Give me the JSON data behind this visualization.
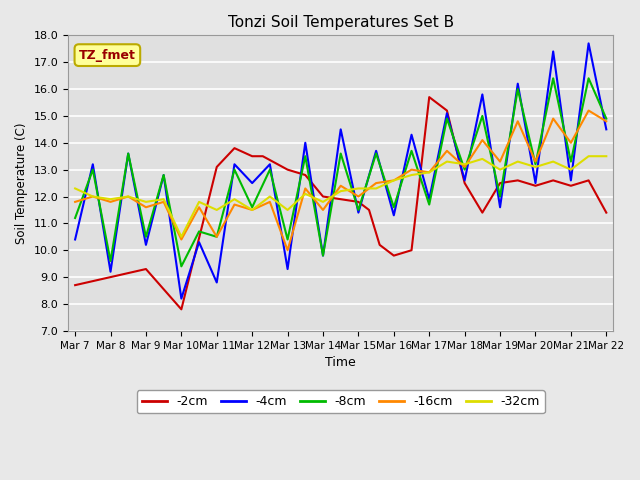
{
  "title": "Tonzi Soil Temperatures Set B",
  "xlabel": "Time",
  "ylabel": "Soil Temperature (C)",
  "ylim": [
    7.0,
    18.0
  ],
  "yticks": [
    7.0,
    8.0,
    9.0,
    10.0,
    11.0,
    12.0,
    13.0,
    14.0,
    15.0,
    16.0,
    17.0,
    18.0
  ],
  "xtick_labels": [
    "Mar 7",
    "Mar 8",
    "Mar 9",
    "Mar 10",
    "Mar 11",
    "Mar 12",
    "Mar 13",
    "Mar 14",
    "Mar 15",
    "Mar 16",
    "Mar 17",
    "Mar 18",
    "Mar 19",
    "Mar 20",
    "Mar 21",
    "Mar 22"
  ],
  "legend_label": "TZ_fmet",
  "series": {
    "-2cm": {
      "color": "#cc0000",
      "x": [
        0,
        1,
        2,
        3,
        4,
        4.5,
        5,
        5.3,
        6,
        6.5,
        7,
        7.5,
        8,
        8.3,
        8.6,
        9,
        9.5,
        10,
        10.5,
        11,
        11.5,
        12,
        12.5,
        13,
        13.5,
        14,
        14.5,
        15
      ],
      "y": [
        8.7,
        9.0,
        9.3,
        7.8,
        13.1,
        13.8,
        13.5,
        13.5,
        13.0,
        12.8,
        12.0,
        11.9,
        11.8,
        11.5,
        10.2,
        9.8,
        10.0,
        15.7,
        15.2,
        12.5,
        11.4,
        12.5,
        12.6,
        12.4,
        12.6,
        12.4,
        12.6,
        11.4
      ]
    },
    "-4cm": {
      "color": "#0000ff",
      "x": [
        0,
        0.5,
        1,
        1.5,
        2,
        2.5,
        3,
        3.5,
        4,
        4.5,
        5,
        5.5,
        6,
        6.5,
        7,
        7.5,
        8,
        8.5,
        9,
        9.5,
        10,
        10.5,
        11,
        11.5,
        12,
        12.5,
        13,
        13.5,
        14,
        14.5,
        15
      ],
      "y": [
        10.4,
        13.2,
        9.2,
        13.6,
        10.2,
        12.8,
        8.2,
        10.3,
        8.8,
        13.2,
        12.5,
        13.2,
        9.3,
        14.0,
        9.8,
        14.5,
        11.4,
        13.7,
        11.3,
        14.3,
        11.9,
        15.1,
        12.6,
        15.8,
        11.6,
        16.2,
        12.5,
        17.4,
        12.6,
        17.7,
        14.5
      ]
    },
    "-8cm": {
      "color": "#00bb00",
      "x": [
        0,
        0.5,
        1,
        1.5,
        2,
        2.5,
        3,
        3.5,
        4,
        4.5,
        5,
        5.5,
        6,
        6.5,
        7,
        7.5,
        8,
        8.5,
        9,
        9.5,
        10,
        10.5,
        11,
        11.5,
        12,
        12.5,
        13,
        13.5,
        14,
        14.5,
        15
      ],
      "y": [
        11.2,
        13.0,
        9.6,
        13.6,
        10.5,
        12.8,
        9.4,
        10.7,
        10.5,
        13.0,
        11.6,
        13.0,
        10.4,
        13.5,
        9.8,
        13.6,
        11.5,
        13.6,
        11.6,
        13.7,
        11.7,
        14.9,
        13.0,
        15.0,
        12.0,
        16.0,
        13.2,
        16.4,
        13.3,
        16.4,
        14.9
      ]
    },
    "-16cm": {
      "color": "#ff8800",
      "x": [
        0,
        0.5,
        1,
        1.5,
        2,
        2.5,
        3,
        3.5,
        4,
        4.5,
        5,
        5.5,
        6,
        6.5,
        7,
        7.5,
        8,
        8.5,
        9,
        9.5,
        10,
        10.5,
        11,
        11.5,
        12,
        12.5,
        13,
        13.5,
        14,
        14.5,
        15
      ],
      "y": [
        11.8,
        12.0,
        11.8,
        12.0,
        11.6,
        11.8,
        10.4,
        11.6,
        10.5,
        11.7,
        11.5,
        11.8,
        10.0,
        12.3,
        11.5,
        12.4,
        12.0,
        12.5,
        12.6,
        13.0,
        12.9,
        13.7,
        13.1,
        14.1,
        13.3,
        14.8,
        13.3,
        14.9,
        14.0,
        15.2,
        14.8
      ]
    },
    "-32cm": {
      "color": "#dddd00",
      "x": [
        0,
        0.5,
        1,
        1.5,
        2,
        2.5,
        3,
        3.5,
        4,
        4.5,
        5,
        5.5,
        6,
        6.5,
        7,
        7.5,
        8,
        8.5,
        9,
        9.5,
        10,
        10.5,
        11,
        11.5,
        12,
        12.5,
        13,
        13.5,
        14,
        14.5,
        15
      ],
      "y": [
        12.3,
        12.0,
        11.9,
        12.0,
        11.8,
        11.9,
        10.5,
        11.8,
        11.5,
        11.9,
        11.5,
        12.0,
        11.5,
        12.1,
        11.8,
        12.2,
        12.3,
        12.3,
        12.6,
        12.8,
        12.9,
        13.3,
        13.2,
        13.4,
        13.0,
        13.3,
        13.1,
        13.3,
        13.0,
        13.5,
        13.5
      ]
    }
  },
  "bg_color": "#e8e8e8",
  "plot_bg_color": "#e0e0e0",
  "grid_color": "#ffffff",
  "legend_box_facecolor": "#ffff99",
  "legend_box_edgecolor": "#bbaa00",
  "legend_text_color": "#990000",
  "series_order": [
    "-2cm",
    "-4cm",
    "-8cm",
    "-16cm",
    "-32cm"
  ]
}
